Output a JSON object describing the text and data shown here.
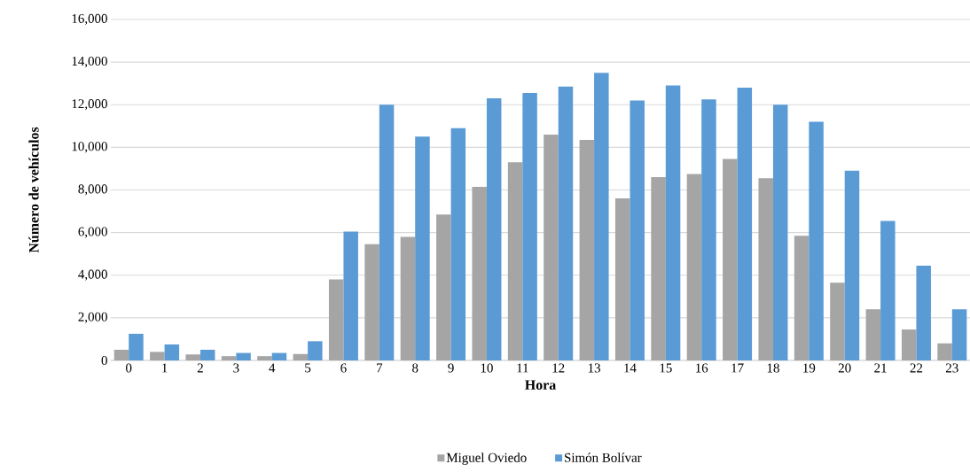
{
  "chart_data": {
    "type": "bar",
    "xlabel": "Hora",
    "ylabel": "Número de vehículos",
    "categories": [
      "0",
      "1",
      "2",
      "3",
      "4",
      "5",
      "6",
      "7",
      "8",
      "9",
      "10",
      "11",
      "12",
      "13",
      "14",
      "15",
      "16",
      "17",
      "18",
      "19",
      "20",
      "21",
      "22",
      "23"
    ],
    "series": [
      {
        "name": "Miguel Oviedo",
        "color": "#a5a5a5",
        "values": [
          500,
          400,
          280,
          200,
          200,
          300,
          3800,
          5450,
          5800,
          6850,
          8150,
          9300,
          10600,
          10350,
          7600,
          8600,
          8750,
          9450,
          8550,
          5850,
          3650,
          2400,
          1450,
          800
        ]
      },
      {
        "name": "Simón Bolívar",
        "color": "#5b9bd5",
        "values": [
          1250,
          750,
          500,
          350,
          350,
          900,
          6050,
          12000,
          10500,
          10900,
          12300,
          12550,
          12850,
          13500,
          12200,
          12900,
          12250,
          12800,
          12000,
          11200,
          8900,
          6550,
          4450,
          2400
        ]
      }
    ],
    "ylim": [
      0,
      16000
    ],
    "yticks": [
      {
        "value": 0,
        "label": "0"
      },
      {
        "value": 2000,
        "label": "2,000"
      },
      {
        "value": 4000,
        "label": "4,000"
      },
      {
        "value": 6000,
        "label": "6,000"
      },
      {
        "value": 8000,
        "label": "8,000"
      },
      {
        "value": 10000,
        "label": "10,000"
      },
      {
        "value": 12000,
        "label": "12,000"
      },
      {
        "value": 14000,
        "label": "14,000"
      },
      {
        "value": 16000,
        "label": "16,000"
      }
    ],
    "grid": "y",
    "legend": "bottom"
  }
}
